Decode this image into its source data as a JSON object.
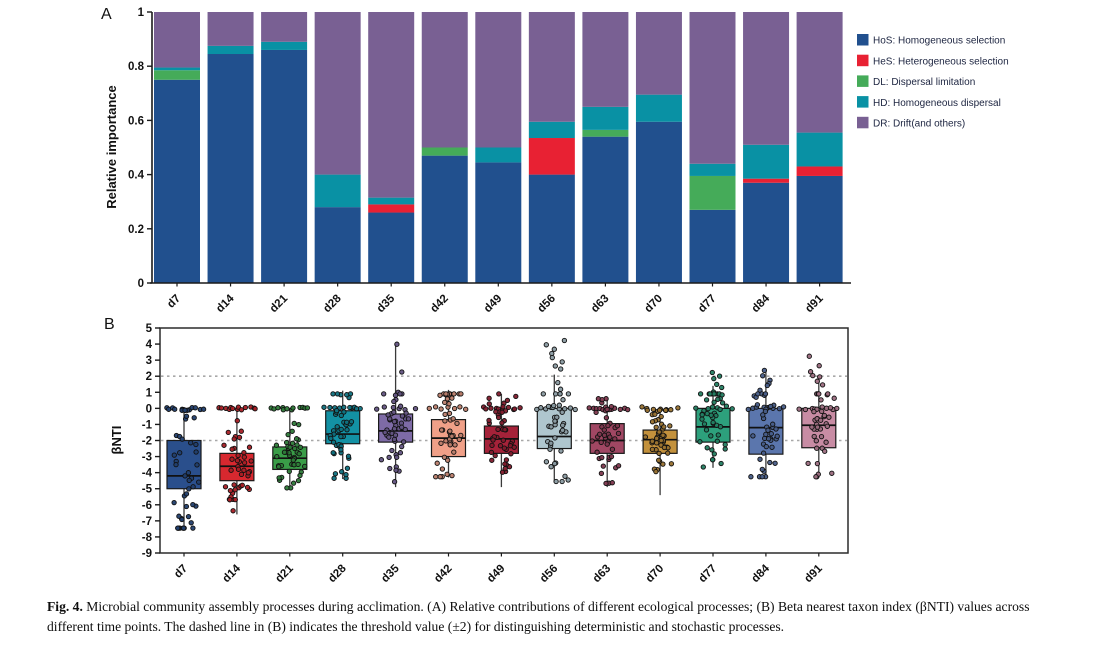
{
  "page": {
    "background": "#ffffff"
  },
  "panels": {
    "a_label": "A",
    "b_label": "B"
  },
  "figure_caption": {
    "label": "Fig. 4.",
    "text": " Microbial community assembly processes during acclimation. (A) Relative contributions of different ecological processes; (B) Beta nearest taxon index (βNTI) values across different time points. The dashed line in (B) indicates the threshold value (±2) for distinguishing deterministic and stochastic processes."
  },
  "chart_data": [
    {
      "type": "bar",
      "stacked": true,
      "title": "",
      "xlabel": "",
      "ylabel": "Relative importance",
      "ylim": [
        0,
        1
      ],
      "yticks": [
        0,
        0.2,
        0.4,
        0.6,
        0.8,
        1
      ],
      "ytick_labels": [
        "0",
        "0.2",
        "0.4",
        "0.6",
        "0.8",
        "1"
      ],
      "grid": false,
      "legend": {
        "position": "right-outside"
      },
      "categories": [
        "d7",
        "d14",
        "d21",
        "d28",
        "d35",
        "d42",
        "d49",
        "d56",
        "d63",
        "d70",
        "d77",
        "d84",
        "d91"
      ],
      "series": [
        {
          "name": "HoS: Homogeneous selection",
          "color": "#21508e",
          "values": [
            0.75,
            0.845,
            0.86,
            0.28,
            0.26,
            0.47,
            0.445,
            0.4,
            0.54,
            0.595,
            0.27,
            0.37,
            0.395
          ]
        },
        {
          "name": "HeS: Heterogeneous selection",
          "color": "#e82133",
          "values": [
            0,
            0,
            0,
            0,
            0.03,
            0,
            0,
            0.135,
            0,
            0,
            0,
            0.015,
            0.035
          ]
        },
        {
          "name": "DL: Dispersal limitation",
          "color": "#45ab59",
          "values": [
            0.035,
            0,
            0,
            0,
            0,
            0.03,
            0,
            0,
            0.025,
            0,
            0.125,
            0,
            0
          ]
        },
        {
          "name": "HD: Homogeneous dispersal",
          "color": "#0991a4",
          "values": [
            0.01,
            0.03,
            0.03,
            0.12,
            0.025,
            0,
            0.055,
            0.06,
            0.085,
            0.1,
            0.045,
            0.125,
            0.125
          ]
        },
        {
          "name": "DR: Drift(and others)",
          "color": "#796093",
          "values": [
            0.205,
            0.125,
            0.11,
            0.6,
            0.685,
            0.5,
            0.5,
            0.405,
            0.35,
            0.305,
            0.56,
            0.49,
            0.445
          ]
        }
      ]
    },
    {
      "type": "box",
      "title": "",
      "xlabel": "",
      "ylabel": "βNTI",
      "ylim": [
        -9,
        5
      ],
      "yticks": [
        5,
        4,
        3,
        2,
        1,
        0,
        -1,
        -2,
        -3,
        -4,
        -5,
        -6,
        -7,
        -8,
        -9
      ],
      "threshold_lines": [
        2,
        -2
      ],
      "threshold_color": "#a8a8a8",
      "frame": true,
      "categories": [
        "d7",
        "d14",
        "d21",
        "d28",
        "d35",
        "d42",
        "d49",
        "d56",
        "d63",
        "d70",
        "d77",
        "d84",
        "d91"
      ],
      "groups": [
        {
          "label": "d7",
          "color": "#2a4f8c",
          "whisker_low": -7.5,
          "q1": -5.0,
          "median": -4.2,
          "q3": -2.0,
          "whisker_high": 0,
          "n_points": 55,
          "zeros": 11,
          "outliers": []
        },
        {
          "label": "d14",
          "color": "#d7282f",
          "whisker_low": -6.6,
          "q1": -4.5,
          "median": -3.6,
          "q3": -2.8,
          "whisker_high": 0,
          "n_points": 55,
          "zeros": 13,
          "outliers": []
        },
        {
          "label": "d21",
          "color": "#3a9d48",
          "whisker_low": -5.0,
          "q1": -3.8,
          "median": -3.1,
          "q3": -2.4,
          "whisker_high": 0,
          "n_points": 55,
          "zeros": 12,
          "outliers": []
        },
        {
          "label": "d28",
          "color": "#1391a4",
          "whisker_low": -4.4,
          "q1": -2.2,
          "median": -1.6,
          "q3": -0.15,
          "whisker_high": 1.1,
          "n_points": 55,
          "zeros": 8,
          "outliers": [
            0.9
          ]
        },
        {
          "label": "d35",
          "color": "#7e6ba6",
          "whisker_low": -4.9,
          "q1": -2.1,
          "median": -1.4,
          "q3": -0.35,
          "whisker_high": 4.0,
          "n_points": 55,
          "zeros": 6,
          "outliers": [
            4.0,
            2.3,
            1.0,
            0.8,
            0.6
          ]
        },
        {
          "label": "d42",
          "color": "#f0a088",
          "whisker_low": -4.3,
          "q1": -3.0,
          "median": -1.85,
          "q3": -0.7,
          "whisker_high": 1.15,
          "n_points": 55,
          "zeros": 7,
          "outliers": [
            0.8
          ]
        },
        {
          "label": "d49",
          "color": "#a52239",
          "whisker_low": -4.9,
          "q1": -2.8,
          "median": -1.9,
          "q3": -1.1,
          "whisker_high": 0.9,
          "n_points": 55,
          "zeros": 10,
          "outliers": [
            0.3
          ]
        },
        {
          "label": "d56",
          "color": "#afc6ce",
          "whisker_low": -4.6,
          "q1": -2.5,
          "median": -1.75,
          "q3": 0.0,
          "whisker_high": 2.1,
          "n_points": 55,
          "zeros": 9,
          "outliers": [
            4.2,
            4.0,
            3.7,
            3.4,
            3.1,
            2.9,
            2.6,
            2.4,
            1.6,
            1.2
          ]
        },
        {
          "label": "d63",
          "color": "#a04763",
          "whisker_low": -4.9,
          "q1": -2.8,
          "median": -2.0,
          "q3": -0.95,
          "whisker_high": 0.6,
          "n_points": 55,
          "zeros": 12,
          "outliers": [
            0.4
          ]
        },
        {
          "label": "d70",
          "color": "#c3913c",
          "whisker_low": -5.4,
          "q1": -2.8,
          "median": -1.95,
          "q3": -1.35,
          "whisker_high": 0,
          "n_points": 55,
          "zeros": 7,
          "outliers": []
        },
        {
          "label": "d77",
          "color": "#2da07c",
          "whisker_low": -3.7,
          "q1": -2.1,
          "median": -1.15,
          "q3": 0.0,
          "whisker_high": 1.4,
          "n_points": 55,
          "zeros": 4,
          "outliers": [
            2.2,
            2.0,
            1.8,
            1.5,
            1.3,
            1.0
          ]
        },
        {
          "label": "d84",
          "color": "#5b76ad",
          "whisker_low": -4.3,
          "q1": -2.85,
          "median": -1.2,
          "q3": 0.0,
          "whisker_high": 2.35,
          "n_points": 55,
          "zeros": 8,
          "outliers": [
            2.3,
            2.0,
            1.8,
            1.6,
            1.4,
            1.1
          ]
        },
        {
          "label": "d91",
          "color": "#c88ca4",
          "whisker_low": -4.3,
          "q1": -2.45,
          "median": -1.05,
          "q3": 0.0,
          "whisker_high": 2.0,
          "n_points": 55,
          "zeros": 8,
          "outliers": [
            3.3,
            2.6,
            2.3,
            2.1,
            1.9,
            1.7,
            1.4
          ]
        }
      ]
    }
  ]
}
